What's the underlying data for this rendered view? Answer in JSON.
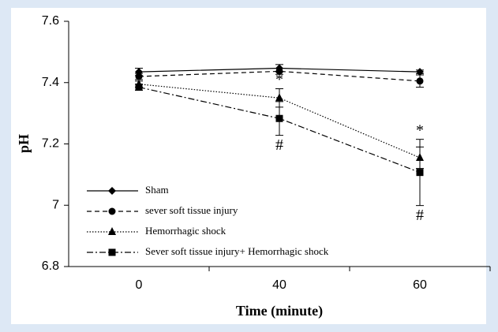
{
  "chart_data": {
    "type": "line",
    "xlabel": "Time (minute)",
    "ylabel": "pH",
    "categories": [
      "0",
      "40",
      "60"
    ],
    "ylim": [
      6.8,
      7.6
    ],
    "yticks": [
      6.8,
      7,
      7.2,
      7.4,
      7.6
    ],
    "legend": "lower left",
    "series": [
      {
        "name": "Sham",
        "color": "#000000",
        "marker": "diamond",
        "dash": "solid",
        "values": [
          7.435,
          7.447,
          7.435
        ],
        "errors": [
          0.012,
          0.012,
          0.006
        ]
      },
      {
        "name": "sever soft tissue injury",
        "color": "#000000",
        "marker": "circle",
        "dash": "dashed",
        "values": [
          7.42,
          7.437,
          7.405
        ],
        "errors": [
          0.01,
          0.01,
          0.02
        ]
      },
      {
        "name": "Hemorrhagic shock",
        "color": "#000000",
        "marker": "triangle",
        "dash": "dotted",
        "values": [
          7.395,
          7.35,
          7.155
        ],
        "errors": [
          0.01,
          0.03,
          0.035
        ]
      },
      {
        "name": "Sever soft tissue injury+ Hemorrhagic shock",
        "color": "#000000",
        "marker": "square",
        "dash": "dashdot",
        "values": [
          7.385,
          7.283,
          7.107
        ],
        "errors": [
          0.01,
          0.055,
          0.108
        ]
      }
    ],
    "annotations": [
      {
        "text": "*",
        "x": "40",
        "position": "above"
      },
      {
        "text": "#",
        "x": "40",
        "position": "below"
      },
      {
        "text": "*",
        "x": "60",
        "position": "above"
      },
      {
        "text": "#",
        "x": "60",
        "position": "below"
      }
    ]
  }
}
